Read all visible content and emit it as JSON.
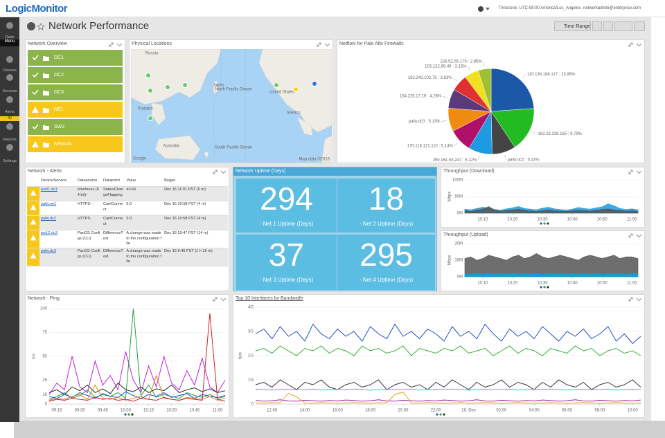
{
  "top_bar": {
    "logo": "LogicMonitor",
    "timezone": "Timezone: UTC-08:00 America/Los_Angeles",
    "user": "networkadmin@enterprise.com"
  },
  "sidebar": {
    "items": [
      {
        "label": "Dash"
      },
      {
        "label": "Menu"
      },
      {
        "label": "Devices"
      },
      {
        "label": "Services"
      },
      {
        "label": "Alerts",
        "badge": 42
      },
      {
        "label": "Reports"
      },
      {
        "label": "Settings"
      }
    ]
  },
  "dashboard": {
    "title": "Network Performance",
    "time_range": "Time Range"
  },
  "network_overview": {
    "title": "Network Overview",
    "items": [
      {
        "label": "DC1",
        "status": "ok"
      },
      {
        "label": "DC2",
        "status": "ok"
      },
      {
        "label": "DC3",
        "status": "ok"
      },
      {
        "label": "NE1",
        "status": "warn"
      },
      {
        "label": "SW2",
        "status": "ok"
      },
      {
        "label": "Network",
        "status": "warn"
      }
    ]
  },
  "map": {
    "title": "Physical Locations",
    "labels": [
      "Russia",
      "Japan",
      "Thailand",
      "Australia",
      "North Pacific Ocean",
      "South Pacific Ocean",
      "United States",
      "Mexico"
    ],
    "attribution": "Map data ©2016",
    "brand": "Google"
  },
  "alerts": {
    "title": "Network - Alerts",
    "columns": [
      "Device/Service",
      "Datasource",
      "Datapoint",
      "Value",
      "Began"
    ],
    "rows": [
      [
        "pw01.dc1",
        "Interfaces (64 bit)-",
        "StatusChangeFlapping",
        "40.66",
        "Dec 16 11:01 PST (0 m)"
      ],
      [
        "pafw.ne1",
        "HTTPS-",
        "CantConnect",
        "5.0",
        "Dec 16 10:58 PST (4 m)"
      ],
      [
        "pafw.dc2",
        "HTTPS-",
        "CantConnect",
        "5.0",
        "Dec 16 10:58 PST (4 m)"
      ],
      [
        "pw12.dc3",
        "PanOS Configs (CLI)",
        "DifferenceTest",
        "A change was made to the configuration file",
        "Dec 16 10:47 PST (14 m)"
      ],
      [
        "pafw.dc3",
        "PanOS Configs (CLI)",
        "DifferenceTest",
        "A change was made to the configuration file",
        "Dec 16 9:46 PST (1 h 16 m)"
      ]
    ]
  },
  "uptime": {
    "title": "Network Uptime (Days)",
    "tiles": [
      {
        "value": 294,
        "label": "- Net 1 Uptime (Days)"
      },
      {
        "value": 18,
        "label": "- Net 2 Uptime (Days)"
      },
      {
        "value": 37,
        "label": "- Net 3 Uptime (Days)"
      },
      {
        "value": 295,
        "label": "- Net 4 Uptime (Days)"
      }
    ]
  },
  "chart_data": [
    {
      "type": "pie",
      "title": "Netflow for Palo Alto Firewalls",
      "categories": [
        "110:136.188.117",
        "163.23.238.165",
        "pafw.dc2",
        "250.161.53.247",
        "170.118.121.110",
        "pafw.dc3",
        "154.225.17.19",
        "182.243.102.75",
        "103.132.89.49",
        "226.52.55.175"
      ],
      "values": [
        13.96,
        9.79,
        5.22,
        5.22,
        5.14,
        5.13,
        4.26,
        3.63,
        3.15,
        2.85
      ],
      "value_labels": [
        "110:136.188.117 : 13.96%",
        "163.23.238.165 : 9.79%",
        "pafw.dc2 : 5.22%",
        "250.161.53.247 : 5.22%",
        "170.118.121.110 : 5.14%",
        "pafw.dc3 : 5.13%",
        "154.225.17.19 : 4.26%",
        "182.243.102.75 : 3.63%",
        "103.132.89.49 : 3.15%",
        "226.52.55.175 : 2.85%"
      ],
      "colors": [
        "#1b58a8",
        "#22bb22",
        "#444444",
        "#1e9be0",
        "#b0106a",
        "#f08a10",
        "#5a3a7a",
        "#e03030",
        "#f0e020",
        "#a0c030"
      ]
    },
    {
      "type": "area",
      "title": "Throughput (Download)",
      "ylabel": "Mbps",
      "x": [
        "10:04",
        "10:06",
        "10:08",
        "10:10",
        "10:12",
        "10:14",
        "10:16",
        "10:18",
        "10:20",
        "10:22",
        "10:24",
        "10:26",
        "10:28",
        "10:30",
        "10:32",
        "10:34",
        "10:36",
        "10:38",
        "10:40",
        "10:42",
        "10:44",
        "10:46",
        "10:48",
        "10:50",
        "10:52",
        "10:54",
        "10:56",
        "10:58",
        "11:00",
        "11:02"
      ],
      "xticks": [
        "10:10",
        "10:20",
        "10:30",
        "10:40",
        "10:50",
        "11:00"
      ],
      "ylim": [
        0,
        100
      ],
      "yticks": [
        {
          "value": 0,
          "label": "0M"
        },
        {
          "value": 50,
          "label": "50M"
        },
        {
          "value": 100,
          "label": "100M"
        }
      ],
      "series": [
        {
          "color": "#1a9be0",
          "values": [
            12,
            10,
            14,
            18,
            15,
            11,
            9,
            13,
            16,
            20,
            14,
            12,
            10,
            15,
            18,
            13,
            11,
            9,
            12,
            17,
            14,
            12,
            16,
            19,
            28,
            22,
            14,
            11,
            13,
            10
          ]
        },
        {
          "color": "#555555",
          "values": [
            8,
            5,
            9,
            12,
            20,
            10,
            6,
            8,
            10,
            12,
            9,
            6,
            5,
            8,
            10,
            7,
            6,
            5,
            7,
            9,
            8,
            6,
            9,
            11,
            13,
            10,
            8,
            6,
            7,
            5
          ]
        }
      ]
    },
    {
      "type": "area",
      "title": "Throughput (Upload)",
      "ylabel": "Mbps",
      "x": [
        "10:04",
        "10:06",
        "10:08",
        "10:10",
        "10:12",
        "10:14",
        "10:16",
        "10:18",
        "10:20",
        "10:22",
        "10:24",
        "10:26",
        "10:28",
        "10:30",
        "10:32",
        "10:34",
        "10:36",
        "10:38",
        "10:40",
        "10:42",
        "10:44",
        "10:46",
        "10:48",
        "10:50",
        "10:52",
        "10:54",
        "10:56",
        "10:58",
        "11:00",
        "11:02"
      ],
      "xticks": [
        "10:10",
        "10:20",
        "10:30",
        "10:40",
        "10:50",
        "11:00"
      ],
      "ylim": [
        0,
        20
      ],
      "yticks": [
        {
          "value": 0,
          "label": "0M"
        },
        {
          "value": 10,
          "label": "10M"
        },
        {
          "value": 20,
          "label": "20M"
        }
      ],
      "series": [
        {
          "color": "#555555",
          "values": [
            11,
            12,
            10,
            11,
            13,
            12,
            11,
            10,
            12,
            13,
            11,
            12,
            14,
            12,
            11,
            12,
            13,
            12,
            11,
            10,
            12,
            13,
            12,
            11,
            12,
            13,
            11,
            12,
            12,
            11
          ]
        },
        {
          "color": "#1a9be0",
          "values": [
            2,
            1.5,
            2,
            1.5,
            2,
            1.5,
            2,
            1.5,
            2,
            1.5,
            2,
            1.5,
            2,
            1.5,
            2,
            1.5,
            2,
            1.5,
            2,
            1.5,
            2,
            1.5,
            2,
            1.5,
            2,
            1.5,
            2,
            1.5,
            2,
            1.5
          ]
        }
      ]
    },
    {
      "type": "line",
      "title": "Network - Ping",
      "ylabel": "ms",
      "x": [
        "09:10",
        "09:15",
        "09:20",
        "09:25",
        "09:30",
        "09:35",
        "09:40",
        "09:45",
        "09:50",
        "09:55",
        "10:00",
        "10:05",
        "10:10",
        "10:15",
        "10:20",
        "10:25",
        "10:30",
        "10:35",
        "10:40",
        "10:45",
        "10:50",
        "10:55",
        "11:00",
        "11:05"
      ],
      "xticks": [
        "09:15",
        "09:30",
        "09:45",
        "10:00",
        "10:15",
        "10:30",
        "10:45",
        "11:00"
      ],
      "ylim": [
        0,
        100
      ],
      "yticks": [
        0,
        10,
        25,
        50,
        75,
        100
      ],
      "series": [
        {
          "color": "#c020e0",
          "values": [
            10,
            22,
            15,
            50,
            18,
            12,
            45,
            20,
            30,
            15,
            55,
            25,
            12,
            40,
            18,
            50,
            22,
            15,
            35,
            20,
            48,
            18,
            12,
            25
          ]
        },
        {
          "color": "#20a040",
          "values": [
            5,
            8,
            12,
            6,
            9,
            15,
            7,
            10,
            8,
            12,
            6,
            100,
            9,
            20,
            7,
            10,
            8,
            6,
            12,
            9,
            7,
            10,
            6,
            8
          ]
        },
        {
          "color": "#222222",
          "values": [
            12,
            15,
            10,
            18,
            14,
            20,
            12,
            16,
            11,
            22,
            15,
            13,
            18,
            12,
            16,
            14,
            20,
            12,
            15,
            17,
            13,
            16,
            12,
            14
          ]
        },
        {
          "color": "#2050d0",
          "values": [
            8,
            6,
            10,
            7,
            12,
            9,
            6,
            11,
            8,
            7,
            13,
            9,
            6,
            10,
            8,
            12,
            7,
            9,
            11,
            6,
            10,
            8,
            7,
            9
          ]
        },
        {
          "color": "#e08020",
          "values": [
            4,
            6,
            5,
            8,
            10,
            5,
            20,
            6,
            5,
            7,
            4,
            6,
            8,
            5,
            30,
            6,
            5,
            4,
            7,
            6,
            5,
            8,
            4,
            6
          ]
        },
        {
          "color": "#d02020",
          "values": [
            3,
            5,
            4,
            6,
            5,
            4,
            7,
            5,
            6,
            4,
            5,
            3,
            6,
            5,
            4,
            7,
            5,
            4,
            6,
            5,
            4,
            95,
            5,
            3
          ]
        }
      ]
    },
    {
      "type": "line",
      "title": "Top 10 Interfaces by Bandwidth",
      "ylabel": "bps",
      "x": [
        "11:00",
        "11:30",
        "12:00",
        "12:30",
        "13:00",
        "13:30",
        "14:00",
        "14:30",
        "15:00",
        "15:30",
        "16:00",
        "16:30",
        "17:00",
        "17:30",
        "18:00",
        "18:30",
        "19:00",
        "19:30",
        "20:00",
        "20:30",
        "21:00",
        "21:30",
        "22:00",
        "22:30",
        "23:00",
        "23:30",
        "00:00",
        "00:30",
        "01:00",
        "01:30",
        "02:00",
        "02:30",
        "03:00",
        "03:30",
        "04:00",
        "04:30",
        "05:00",
        "05:30",
        "06:00",
        "06:30",
        "07:00",
        "07:30",
        "08:00",
        "08:30",
        "09:00",
        "09:30",
        "10:00",
        "10:30"
      ],
      "xticks": [
        "12:00",
        "14:00",
        "16:00",
        "18:00",
        "20:00",
        "22:00",
        {
          "value": "00:00",
          "label": "16. Dec"
        },
        "02:00",
        "04:00",
        "06:00",
        "08:00",
        "10:00"
      ],
      "ylim": [
        0,
        4
      ],
      "yticks": [
        0,
        {
          "value": 1,
          "label": "1G"
        },
        {
          "value": 2,
          "label": "2G"
        },
        {
          "value": 3,
          "label": "3G"
        },
        {
          "value": 4,
          "label": "4G"
        }
      ],
      "series": [
        {
          "color": "#2050c8",
          "values": [
            2.9,
            3.1,
            2.7,
            3.2,
            2.8,
            3.0,
            2.6,
            3.3,
            2.9,
            2.7,
            3.1,
            2.8,
            3.0,
            2.6,
            3.2,
            2.9,
            2.7,
            3.3,
            2.8,
            3.0,
            2.7,
            3.1,
            2.9,
            2.6,
            3.2,
            2.8,
            3.0,
            2.7,
            3.3,
            2.9,
            2.6,
            3.1,
            2.8,
            3.0,
            2.7,
            3.2,
            2.9,
            2.6,
            3.0,
            2.8,
            3.1,
            2.7,
            2.9,
            3.2,
            2.6,
            2.9,
            2.5,
            2.8
          ]
        },
        {
          "color": "#30b030",
          "values": [
            2.2,
            2.3,
            2.1,
            2.4,
            2.2,
            2.0,
            2.3,
            2.2,
            2.4,
            2.1,
            2.3,
            2.2,
            2.0,
            2.4,
            2.2,
            2.3,
            2.1,
            2.2,
            2.4,
            2.0,
            2.3,
            2.2,
            2.1,
            2.3,
            2.2,
            2.4,
            2.1,
            2.2,
            2.3,
            2.0,
            2.2,
            2.4,
            2.1,
            2.3,
            2.2,
            2.0,
            2.3,
            2.2,
            2.1,
            2.4,
            2.2,
            2.3,
            2.0,
            2.2,
            2.3,
            2.1,
            2.2,
            2.0
          ]
        },
        {
          "color": "#333333",
          "values": [
            0.8,
            0.9,
            0.7,
            1.0,
            0.8,
            0.6,
            0.9,
            0.8,
            1.0,
            0.7,
            0.6,
            0.8,
            0.9,
            0.7,
            0.8,
            1.0,
            0.6,
            0.8,
            0.9,
            0.7,
            0.8,
            0.6,
            0.9,
            0.7,
            1.0,
            0.8,
            0.6,
            0.9,
            0.7,
            0.8,
            1.0,
            0.7,
            0.9,
            0.8,
            0.6,
            0.9,
            0.7,
            1.0,
            0.8,
            0.7,
            0.9,
            0.6,
            0.8,
            0.9,
            0.7,
            0.8,
            1.0,
            0.7
          ]
        },
        {
          "color": "#30c0d8",
          "values": [
            0.62,
            0.6,
            0.58,
            0.6,
            0.61,
            0.59,
            0.6,
            0.62,
            0.58,
            0.6,
            0.61,
            0.6,
            0.62,
            0.6,
            0.58,
            0.6,
            0.61,
            0.59,
            0.6,
            0.62,
            0.58,
            0.6,
            0.61,
            0.6,
            0.62,
            0.6,
            0.58,
            0.6,
            0.61,
            0.59,
            0.6,
            0.62,
            0.58,
            0.6,
            0.61,
            0.6,
            0.62,
            0.6,
            0.58,
            0.6,
            0.61,
            0.59,
            0.6,
            0.62,
            0.58,
            0.6,
            0.61,
            0.6
          ]
        },
        {
          "color": "#a020a0",
          "values": [
            0.15,
            0.12,
            0.14,
            0.18,
            0.13,
            0.12,
            0.16,
            0.14,
            0.12,
            0.15,
            0.13,
            0.17,
            0.15,
            0.12,
            0.14,
            0.18,
            0.13,
            0.12,
            0.16,
            0.14,
            0.12,
            0.15,
            0.13,
            0.17,
            0.15,
            0.12,
            0.14,
            0.18,
            0.13,
            0.12,
            0.16,
            0.14,
            0.12,
            0.15,
            0.13,
            0.17,
            0.15,
            0.12,
            0.14,
            0.18,
            0.13,
            0.12,
            0.16,
            0.14,
            0.12,
            0.15,
            0.13,
            0.17
          ]
        },
        {
          "color": "#f0a020",
          "values": [
            0.05,
            0.04,
            0.06,
            0.05,
            0.45,
            0.3,
            0.05,
            0.04,
            0.06,
            0.05,
            0.04,
            0.05,
            0.06,
            0.05,
            0.04,
            0.05,
            0.06,
            0.4,
            0.5,
            0.05,
            0.04,
            0.06,
            0.05,
            0.04,
            0.05,
            0.06,
            0.04,
            0.05,
            0.06,
            0.05,
            0.04,
            0.05,
            0.06,
            0.05,
            0.04,
            0.05,
            0.06,
            0.05,
            0.04,
            0.05,
            0.06,
            0.05,
            0.04,
            0.05,
            0.06,
            0.05,
            0.04,
            0.05
          ]
        }
      ]
    }
  ]
}
